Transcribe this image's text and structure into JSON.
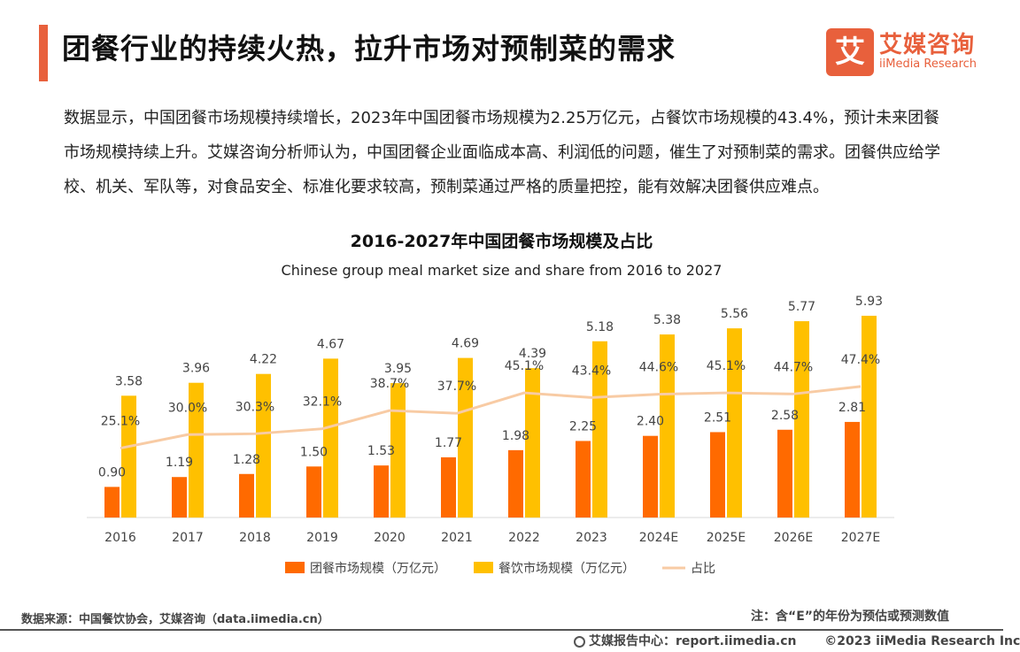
{
  "header": {
    "title": "团餐行业的持续火热，拉升市场对预制菜的需求",
    "logo_cn": "艾媒咨询",
    "logo_en": "iiMedia Research",
    "logo_mark": "艾"
  },
  "summary": "数据显示，中国团餐市场规模持续增长，2023年中国团餐市场规模为2.25万亿元，占餐饮市场规模的43.4%，预计未来团餐市场规模持续上升。艾媒咨询分析师认为，中国团餐企业面临成本高、利润低的问题，催生了对预制菜的需求。团餐供应给学校、机关、军队等，对食品安全、标准化要求较高，预制菜通过严格的质量把控，能有效解决团餐供应难点。",
  "chart_data": {
    "type": "bar",
    "title": "2016-2027年中国团餐市场规模及占比",
    "subtitle": "Chinese group meal market size and share from 2016 to 2027",
    "categories": [
      "2016",
      "2017",
      "2018",
      "2019",
      "2020",
      "2021",
      "2022",
      "2023",
      "2024E",
      "2025E",
      "2026E",
      "2027E"
    ],
    "series": [
      {
        "name": "团餐市场规模（万亿元）",
        "type": "bar",
        "color": "#ff6a00",
        "values": [
          0.9,
          1.19,
          1.28,
          1.5,
          1.53,
          1.77,
          1.98,
          2.25,
          2.4,
          2.51,
          2.58,
          2.81
        ],
        "labels": [
          "0.90",
          "1.19",
          "1.28",
          "1.50",
          "1.53",
          "1.77",
          "1.98",
          "2.25",
          "2.40",
          "2.51",
          "2.58",
          "2.81"
        ]
      },
      {
        "name": "餐饮市场规模（万亿元）",
        "type": "bar",
        "color": "#ffc000",
        "values": [
          3.58,
          3.96,
          4.22,
          4.67,
          3.95,
          4.69,
          4.39,
          5.18,
          5.38,
          5.56,
          5.77,
          5.93
        ],
        "labels": [
          "3.58",
          "3.96",
          "4.22",
          "4.67",
          "3.95",
          "4.69",
          "4.39",
          "5.18",
          "5.38",
          "5.56",
          "5.77",
          "5.93"
        ]
      },
      {
        "name": "占比",
        "type": "line",
        "color": "#f8cba4",
        "values": [
          25.1,
          30.0,
          30.3,
          32.1,
          38.7,
          37.7,
          45.1,
          43.4,
          44.6,
          45.1,
          44.7,
          47.4
        ],
        "labels": [
          "25.1%",
          "30.0%",
          "30.3%",
          "32.1%",
          "38.7%",
          "37.7%",
          "45.1%",
          "43.4%",
          "44.6%",
          "45.1%",
          "44.7%",
          "47.4%"
        ]
      }
    ],
    "ylim_left": [
      0,
      6.5
    ],
    "ylim_right": [
      0,
      80
    ],
    "grid": false,
    "legend": "bottom"
  },
  "footer": {
    "source": "数据来源：中国餐饮协会，艾媒咨询（data.iimedia.cn）",
    "note": "注：含“E”的年份为预估或预测数值",
    "report_center": "艾媒报告中心：report.iimedia.cn",
    "copyright": "©2023  iiMedia Research  Inc"
  }
}
